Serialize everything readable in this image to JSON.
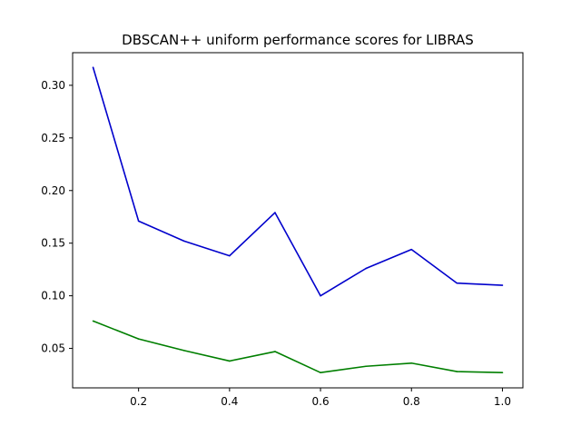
{
  "chart_data": {
    "type": "line",
    "title": "DBSCAN++ uniform performance scores for LIBRAS",
    "xlabel": "",
    "ylabel": "",
    "xlim": [
      0.055,
      1.045
    ],
    "ylim": [
      0.0125,
      0.331
    ],
    "xticks": [
      0.2,
      0.4,
      0.6,
      0.8,
      1.0
    ],
    "xtick_labels": [
      "0.2",
      "0.4",
      "0.6",
      "0.8",
      "1.0"
    ],
    "yticks": [
      0.05,
      0.1,
      0.15,
      0.2,
      0.25,
      0.3
    ],
    "ytick_labels": [
      "0.05",
      "0.10",
      "0.15",
      "0.20",
      "0.25",
      "0.30"
    ],
    "x": [
      0.1,
      0.2,
      0.3,
      0.4,
      0.5,
      0.6,
      0.7,
      0.8,
      0.9,
      1.0
    ],
    "series": [
      {
        "color": "#0000cc",
        "values": [
          0.317,
          0.171,
          0.152,
          0.138,
          0.179,
          0.1,
          0.126,
          0.144,
          0.112,
          0.11
        ]
      },
      {
        "color": "#007f00",
        "values": [
          0.076,
          0.059,
          0.048,
          0.038,
          0.047,
          0.027,
          0.033,
          0.036,
          0.028,
          0.027
        ]
      }
    ],
    "grid": false,
    "legend": "none"
  }
}
